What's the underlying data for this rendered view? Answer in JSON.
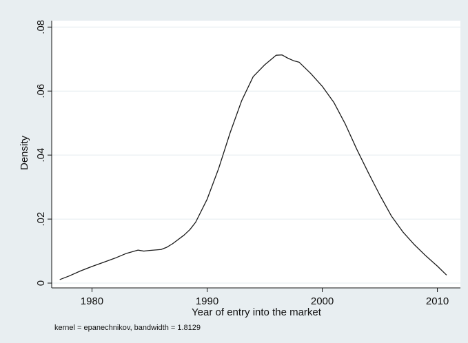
{
  "chart_data": {
    "type": "line",
    "title": "",
    "xlabel": "Year of entry into the market",
    "ylabel": "Density",
    "note": "kernel = epanechnikov, bandwidth = 1.8129",
    "xlim": [
      1976.5,
      2012.0
    ],
    "ylim": [
      -0.0015,
      0.082
    ],
    "xticks": [
      1980,
      1990,
      2000,
      2010
    ],
    "xtick_labels": [
      "1980",
      "1990",
      "2000",
      "2010"
    ],
    "yticks": [
      0,
      0.02,
      0.04,
      0.06,
      0.08
    ],
    "ytick_labels": [
      "0",
      ".02",
      ".04",
      ".06",
      ".08"
    ],
    "grid": true,
    "legend": "none",
    "colors": {
      "background": "#e8eef1",
      "plot_area": "#ffffff",
      "grid": "#e4ecef",
      "line": "#1a1a1a"
    },
    "series": [
      {
        "x": [
          1977.2,
          1978.0,
          1979.0,
          1980.0,
          1981.0,
          1982.0,
          1983.0,
          1984.0,
          1984.5,
          1985.0,
          1986.0,
          1986.5,
          1987.0,
          1988.0,
          1988.5,
          1989.0,
          1990.0,
          1991.0,
          1992.0,
          1993.0,
          1994.0,
          1995.0,
          1995.5,
          1996.0,
          1996.5,
          1997.0,
          1997.5,
          1998.0,
          1999.0,
          2000.0,
          2001.0,
          2002.0,
          2003.0,
          2004.0,
          2005.0,
          2006.0,
          2007.0,
          2008.0,
          2009.0,
          2010.0,
          2010.8
        ],
        "values": [
          0.0011,
          0.0022,
          0.0038,
          0.0052,
          0.0065,
          0.0078,
          0.0093,
          0.0103,
          0.01,
          0.0102,
          0.0105,
          0.0112,
          0.0123,
          0.015,
          0.0167,
          0.019,
          0.0262,
          0.0358,
          0.047,
          0.057,
          0.0645,
          0.0682,
          0.0697,
          0.0712,
          0.0713,
          0.0703,
          0.0695,
          0.069,
          0.0655,
          0.0615,
          0.0565,
          0.0497,
          0.0418,
          0.0345,
          0.0275,
          0.021,
          0.016,
          0.012,
          0.0085,
          0.0053,
          0.0025
        ]
      }
    ]
  }
}
